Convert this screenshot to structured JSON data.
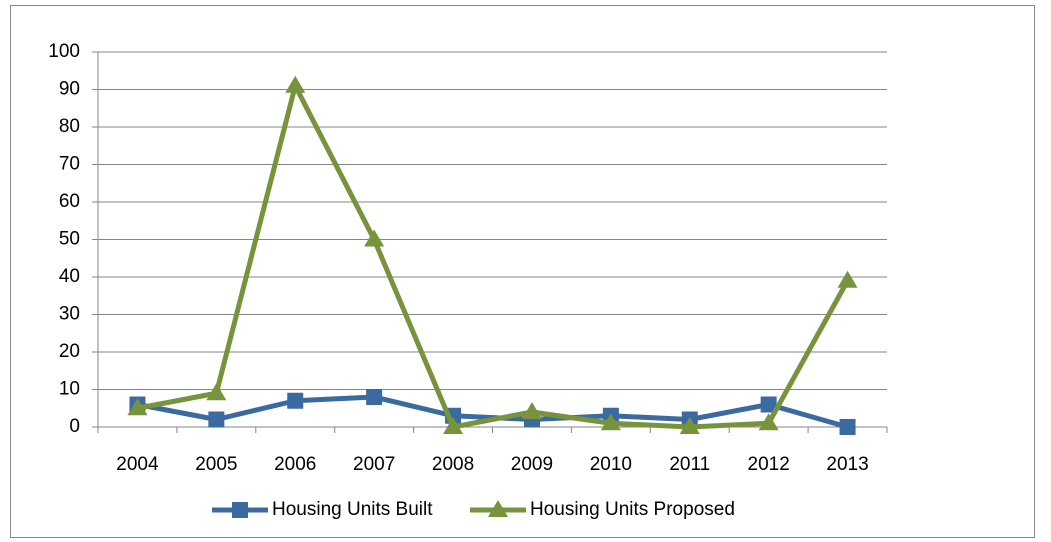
{
  "chart_data": {
    "type": "line",
    "categories": [
      "2004",
      "2005",
      "2006",
      "2007",
      "2008",
      "2009",
      "2010",
      "2011",
      "2012",
      "2013"
    ],
    "series": [
      {
        "name": "Housing Units Built",
        "color": "#3b6aa0",
        "marker": "square",
        "values": [
          6,
          2,
          7,
          8,
          3,
          2,
          3,
          2,
          6,
          0
        ]
      },
      {
        "name": "Housing Units Proposed",
        "color": "#77933c",
        "marker": "triangle",
        "values": [
          5,
          9,
          91,
          50,
          0,
          4,
          1,
          0,
          1,
          39
        ]
      }
    ],
    "ylim": [
      0,
      100
    ],
    "yticks": [
      0,
      10,
      20,
      30,
      40,
      50,
      60,
      70,
      80,
      90,
      100
    ],
    "grid": true,
    "legend": "bottom"
  }
}
